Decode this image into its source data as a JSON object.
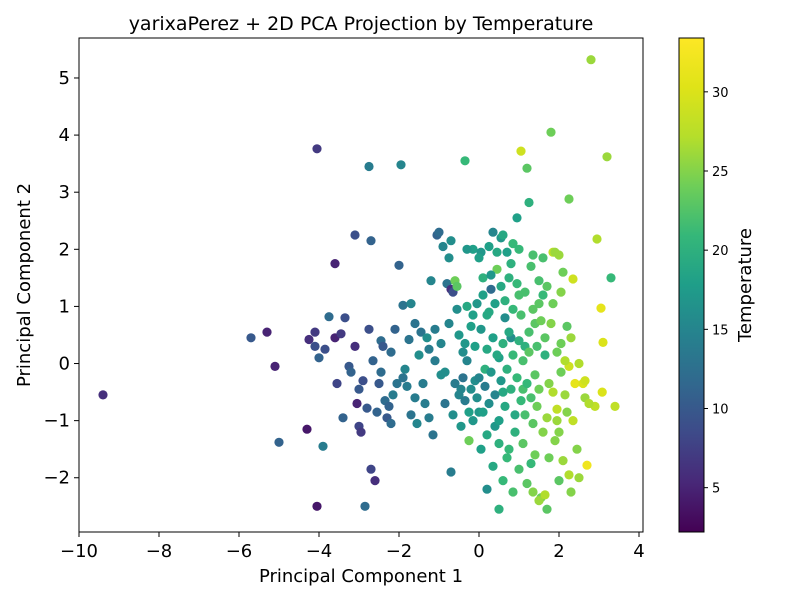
{
  "chart_data": {
    "type": "scatter",
    "title": "yarixaPerez + 2D PCA Projection by Temperature",
    "xlabel": "Principal Component 1",
    "ylabel": "Principal Component 2",
    "xlim": [
      -10,
      4.1
    ],
    "ylim": [
      -2.95,
      5.7
    ],
    "xticks": [
      -10,
      -8,
      -6,
      -4,
      -2,
      0,
      2,
      4
    ],
    "yticks": [
      -2,
      -1,
      0,
      1,
      2,
      3,
      4,
      5
    ],
    "xtick_labels": [
      "−10",
      "−8",
      "−6",
      "−4",
      "−2",
      "0",
      "2",
      "4"
    ],
    "ytick_labels": [
      "−2",
      "−1",
      "0",
      "1",
      "2",
      "3",
      "4",
      "5"
    ],
    "grid": false,
    "colorbar": {
      "label": "Temperature",
      "colormap": "viridis",
      "range": [
        2.2,
        33.4
      ],
      "ticks": [
        5,
        10,
        15,
        20,
        25,
        30
      ],
      "tick_labels": [
        "5",
        "10",
        "15",
        "20",
        "25",
        "30"
      ]
    },
    "points": [
      [
        -9.4,
        -0.55,
        6
      ],
      [
        -5.7,
        0.45,
        10
      ],
      [
        -5.3,
        0.55,
        5
      ],
      [
        -5.1,
        -0.05,
        5
      ],
      [
        -5.0,
        -1.38,
        11
      ],
      [
        -4.3,
        -1.15,
        4
      ],
      [
        -4.25,
        0.42,
        6
      ],
      [
        -4.1,
        0.55,
        7
      ],
      [
        -4.1,
        0.3,
        9
      ],
      [
        -4.0,
        0.1,
        11
      ],
      [
        -4.05,
        -2.5,
        4
      ],
      [
        -4.05,
        3.76,
        7
      ],
      [
        -3.9,
        -1.45,
        14
      ],
      [
        -3.85,
        0.25,
        9
      ],
      [
        -3.75,
        0.82,
        12
      ],
      [
        -3.6,
        1.75,
        5
      ],
      [
        -3.6,
        0.45,
        5
      ],
      [
        -3.55,
        -0.35,
        8
      ],
      [
        -3.45,
        0.52,
        7
      ],
      [
        -3.4,
        -0.95,
        11
      ],
      [
        -3.35,
        0.8,
        9
      ],
      [
        -3.25,
        -0.05,
        10
      ],
      [
        -3.2,
        -0.15,
        11
      ],
      [
        -3.1,
        2.25,
        9
      ],
      [
        -3.1,
        0.3,
        6
      ],
      [
        -3.05,
        -0.7,
        5
      ],
      [
        -3.0,
        -1.1,
        8
      ],
      [
        -2.95,
        -1.2,
        7
      ],
      [
        -2.9,
        -0.3,
        9
      ],
      [
        -2.85,
        -2.5,
        12
      ],
      [
        -2.8,
        -0.78,
        10
      ],
      [
        -2.75,
        0.6,
        9
      ],
      [
        -2.75,
        3.45,
        14
      ],
      [
        -2.7,
        2.15,
        11
      ],
      [
        -2.7,
        -1.85,
        8
      ],
      [
        -2.6,
        -2.05,
        6
      ],
      [
        -2.5,
        -0.35,
        10
      ],
      [
        -2.45,
        0.4,
        12
      ],
      [
        -2.4,
        0.3,
        10
      ],
      [
        -2.35,
        -0.65,
        12
      ],
      [
        -2.3,
        -0.95,
        10
      ],
      [
        -2.25,
        -0.75,
        11
      ],
      [
        -2.2,
        -1.05,
        12
      ],
      [
        -2.15,
        -0.55,
        14
      ],
      [
        -2.1,
        0.6,
        11
      ],
      [
        -2.05,
        -0.35,
        13
      ],
      [
        -2.0,
        1.72,
        11
      ],
      [
        -1.95,
        3.48,
        15
      ],
      [
        -1.9,
        1.02,
        13
      ],
      [
        -1.85,
        -0.1,
        15
      ],
      [
        -1.8,
        -0.4,
        14
      ],
      [
        -1.75,
        0.42,
        13
      ],
      [
        -1.7,
        1.05,
        15
      ],
      [
        -1.6,
        -0.6,
        14
      ],
      [
        -1.55,
        -1.05,
        15
      ],
      [
        -1.5,
        0.15,
        16
      ],
      [
        -1.45,
        0.55,
        13
      ],
      [
        -1.4,
        -0.35,
        14
      ],
      [
        -1.3,
        0.45,
        16
      ],
      [
        -1.25,
        -0.95,
        14
      ],
      [
        -1.2,
        1.45,
        15
      ],
      [
        -1.15,
        -1.25,
        13
      ],
      [
        -1.1,
        0.6,
        14
      ],
      [
        -1.05,
        2.25,
        11
      ],
      [
        -1.0,
        2.3,
        12
      ],
      [
        -0.95,
        -0.2,
        16
      ],
      [
        -0.9,
        2.05,
        15
      ],
      [
        -0.85,
        -0.7,
        13
      ],
      [
        -0.8,
        1.4,
        13
      ],
      [
        -0.75,
        1.85,
        16
      ],
      [
        -0.7,
        -1.9,
        14
      ],
      [
        -0.7,
        1.3,
        6
      ],
      [
        -0.65,
        1.25,
        9
      ],
      [
        -0.6,
        1.45,
        24
      ],
      [
        -0.55,
        1.35,
        23
      ],
      [
        -0.5,
        0.5,
        17
      ],
      [
        -0.45,
        -0.45,
        15
      ],
      [
        -0.4,
        0.2,
        16
      ],
      [
        -0.35,
        3.55,
        21
      ],
      [
        -0.3,
        1.0,
        19
      ],
      [
        -0.25,
        -1.35,
        24
      ],
      [
        -0.2,
        0.65,
        18
      ],
      [
        -0.15,
        2.0,
        18
      ],
      [
        -0.1,
        -0.3,
        16
      ],
      [
        0.0,
        -0.85,
        17
      ],
      [
        0.05,
        1.95,
        17
      ],
      [
        0.1,
        1.5,
        20
      ],
      [
        0.15,
        -0.1,
        20
      ],
      [
        0.2,
        -2.2,
        16
      ],
      [
        0.25,
        0.9,
        19
      ],
      [
        0.3,
        1.3,
        12
      ],
      [
        0.35,
        2.3,
        15
      ],
      [
        0.4,
        -1.1,
        17
      ],
      [
        0.45,
        1.65,
        24
      ],
      [
        0.5,
        0.1,
        18
      ],
      [
        0.5,
        -2.55,
        20
      ],
      [
        0.55,
        2.2,
        17
      ],
      [
        0.6,
        -0.5,
        19
      ],
      [
        0.65,
        0.8,
        16
      ],
      [
        0.7,
        1.95,
        18
      ],
      [
        0.75,
        -1.5,
        21
      ],
      [
        0.8,
        0.45,
        16
      ],
      [
        0.85,
        2.1,
        21
      ],
      [
        0.9,
        -0.9,
        19
      ],
      [
        0.95,
        2.55,
        18
      ],
      [
        1.0,
        1.2,
        22
      ],
      [
        1.05,
        3.72,
        29
      ],
      [
        1.1,
        -0.45,
        22
      ],
      [
        1.15,
        0.3,
        20
      ],
      [
        1.2,
        3.42,
        23
      ],
      [
        1.25,
        2.82,
        20
      ],
      [
        1.3,
        -1.75,
        21
      ],
      [
        1.35,
        1.9,
        22
      ],
      [
        1.4,
        0.7,
        23
      ],
      [
        1.45,
        -0.75,
        24
      ],
      [
        1.5,
        1.45,
        22
      ],
      [
        1.55,
        -2.35,
        24
      ],
      [
        1.6,
        1.2,
        21
      ],
      [
        1.65,
        0.15,
        20
      ],
      [
        1.7,
        -2.55,
        23
      ],
      [
        1.75,
        -0.35,
        25
      ],
      [
        1.8,
        4.05,
        24
      ],
      [
        1.85,
        1.95,
        28
      ],
      [
        1.9,
        1.95,
        26
      ],
      [
        1.95,
        -1.0,
        26
      ],
      [
        2.0,
        -2.05,
        23
      ],
      [
        2.05,
        0.35,
        24
      ],
      [
        2.1,
        1.6,
        24
      ],
      [
        2.15,
        -0.55,
        26
      ],
      [
        2.2,
        0.65,
        23
      ],
      [
        2.25,
        2.88,
        24
      ],
      [
        2.3,
        -2.25,
        25
      ],
      [
        2.35,
        1.48,
        29
      ],
      [
        2.4,
        -0.35,
        31
      ],
      [
        2.45,
        -1.5,
        25
      ],
      [
        2.5,
        -2.0,
        26
      ],
      [
        2.6,
        -0.35,
        30
      ],
      [
        2.65,
        -0.6,
        26
      ],
      [
        2.7,
        -1.78,
        32
      ],
      [
        2.8,
        5.32,
        26
      ],
      [
        2.9,
        -0.75,
        28
      ],
      [
        2.95,
        2.18,
        27
      ],
      [
        3.05,
        0.97,
        31
      ],
      [
        3.08,
        -0.5,
        30
      ],
      [
        3.1,
        0.37,
        30
      ],
      [
        3.2,
        3.62,
        26
      ],
      [
        3.3,
        1.5,
        21
      ],
      [
        3.4,
        -0.75,
        28
      ],
      [
        -0.6,
        -0.35,
        14
      ],
      [
        -0.5,
        -0.55,
        15
      ],
      [
        -0.4,
        -0.25,
        13
      ],
      [
        -0.35,
        -0.65,
        14
      ],
      [
        -0.3,
        0.05,
        15
      ],
      [
        -0.2,
        -0.45,
        16
      ],
      [
        -0.15,
        -1.0,
        17
      ],
      [
        -0.1,
        0.3,
        18
      ],
      [
        -0.05,
        -0.6,
        16
      ],
      [
        0.0,
        -0.25,
        15
      ],
      [
        0.05,
        0.6,
        17
      ],
      [
        0.1,
        -0.85,
        18
      ],
      [
        0.15,
        -0.4,
        14
      ],
      [
        0.2,
        0.25,
        19
      ],
      [
        0.25,
        -0.7,
        16
      ],
      [
        0.3,
        -0.15,
        17
      ],
      [
        0.35,
        0.45,
        18
      ],
      [
        0.4,
        -0.55,
        15
      ],
      [
        0.45,
        0.15,
        19
      ],
      [
        0.5,
        -1.0,
        18
      ],
      [
        0.55,
        -0.3,
        17
      ],
      [
        0.6,
        0.35,
        20
      ],
      [
        0.65,
        -0.75,
        19
      ],
      [
        0.7,
        -0.1,
        20
      ],
      [
        0.75,
        0.55,
        19
      ],
      [
        0.8,
        -0.45,
        20
      ],
      [
        0.85,
        0.15,
        21
      ],
      [
        0.9,
        -1.2,
        20
      ],
      [
        0.95,
        -0.25,
        21
      ],
      [
        1.0,
        0.4,
        20
      ],
      [
        1.05,
        -0.65,
        21
      ],
      [
        1.1,
        0.05,
        22
      ],
      [
        1.15,
        -0.9,
        22
      ],
      [
        1.2,
        -0.35,
        21
      ],
      [
        1.25,
        0.2,
        23
      ],
      [
        1.3,
        -0.6,
        22
      ],
      [
        1.35,
        -1.05,
        23
      ],
      [
        1.4,
        -0.2,
        23
      ],
      [
        1.45,
        0.3,
        22
      ],
      [
        1.5,
        -0.45,
        24
      ],
      [
        -0.05,
        1.05,
        17
      ],
      [
        0.1,
        1.2,
        18
      ],
      [
        0.2,
        0.85,
        19
      ],
      [
        0.3,
        1.55,
        17
      ],
      [
        0.4,
        1.05,
        18
      ],
      [
        0.55,
        1.35,
        19
      ],
      [
        0.65,
        1.1,
        20
      ],
      [
        0.75,
        1.5,
        20
      ],
      [
        0.85,
        0.95,
        21
      ],
      [
        0.95,
        1.4,
        21
      ],
      [
        1.05,
        0.85,
        22
      ],
      [
        1.15,
        1.25,
        22
      ],
      [
        1.25,
        0.55,
        22
      ],
      [
        1.35,
        0.95,
        23
      ],
      [
        1.55,
        0.75,
        24
      ],
      [
        1.65,
        0.45,
        23
      ],
      [
        1.8,
        0.7,
        25
      ],
      [
        1.95,
        0.2,
        24
      ],
      [
        2.05,
        -0.15,
        24
      ],
      [
        2.2,
        -0.85,
        25
      ],
      [
        0.05,
        -1.5,
        18
      ],
      [
        0.2,
        -1.25,
        19
      ],
      [
        0.35,
        -1.8,
        19
      ],
      [
        0.5,
        -1.4,
        20
      ],
      [
        0.6,
        -2.05,
        21
      ],
      [
        0.7,
        -1.65,
        21
      ],
      [
        0.85,
        -2.25,
        22
      ],
      [
        1.0,
        -1.85,
        22
      ],
      [
        1.1,
        -1.4,
        23
      ],
      [
        1.2,
        -2.1,
        23
      ],
      [
        1.4,
        -1.6,
        24
      ],
      [
        1.6,
        -1.2,
        25
      ],
      [
        1.75,
        -1.65,
        24
      ],
      [
        1.9,
        -1.35,
        25
      ],
      [
        2.1,
        -1.7,
        26
      ],
      [
        -1.1,
        0.05,
        14
      ],
      [
        -0.95,
        0.35,
        15
      ],
      [
        -0.85,
        -0.15,
        16
      ],
      [
        -0.75,
        0.7,
        15
      ],
      [
        -0.65,
        -0.9,
        16
      ],
      [
        -0.55,
        0.95,
        16
      ],
      [
        -0.45,
        -1.1,
        17
      ],
      [
        -0.35,
        0.35,
        17
      ],
      [
        -0.25,
        -0.85,
        18
      ],
      [
        -0.15,
        0.85,
        18
      ],
      [
        -1.35,
        -0.7,
        14
      ],
      [
        -1.25,
        0.25,
        14
      ],
      [
        -1.6,
        0.7,
        13
      ],
      [
        -1.7,
        -0.9,
        13
      ],
      [
        -1.9,
        -0.25,
        13
      ],
      [
        -2.2,
        0.2,
        12
      ],
      [
        -2.45,
        -0.15,
        12
      ],
      [
        -2.55,
        -0.85,
        11
      ],
      [
        -2.65,
        0.05,
        11
      ],
      [
        -3.0,
        -0.45,
        10
      ],
      [
        -0.7,
        2.15,
        16
      ],
      [
        -0.3,
        2.0,
        17
      ],
      [
        0.0,
        1.85,
        18
      ],
      [
        0.25,
        2.05,
        18
      ],
      [
        0.45,
        1.95,
        19
      ],
      [
        0.6,
        2.25,
        19
      ],
      [
        0.8,
        1.75,
        20
      ],
      [
        1.0,
        2.0,
        21
      ],
      [
        1.3,
        1.7,
        22
      ],
      [
        1.6,
        1.85,
        22
      ],
      [
        2.0,
        1.9,
        26
      ],
      [
        2.05,
        1.25,
        25
      ],
      [
        1.85,
        1.05,
        24
      ],
      [
        1.7,
        1.35,
        23
      ],
      [
        1.5,
        1.05,
        23
      ],
      [
        2.3,
        0.45,
        26
      ],
      [
        2.5,
        0.0,
        27
      ],
      [
        2.65,
        -0.3,
        29
      ],
      [
        2.75,
        -0.7,
        27
      ],
      [
        2.35,
        -1.0,
        28
      ],
      [
        1.7,
        -0.95,
        26
      ],
      [
        1.85,
        -0.5,
        27
      ],
      [
        2.0,
        -1.2,
        25
      ],
      [
        2.25,
        -1.95,
        27
      ],
      [
        1.5,
        -2.4,
        26
      ],
      [
        1.35,
        -2.25,
        25
      ],
      [
        1.65,
        -2.3,
        27
      ],
      [
        1.95,
        -0.8,
        28
      ],
      [
        2.25,
        -0.05,
        29
      ],
      [
        2.15,
        0.05,
        27
      ]
    ]
  }
}
